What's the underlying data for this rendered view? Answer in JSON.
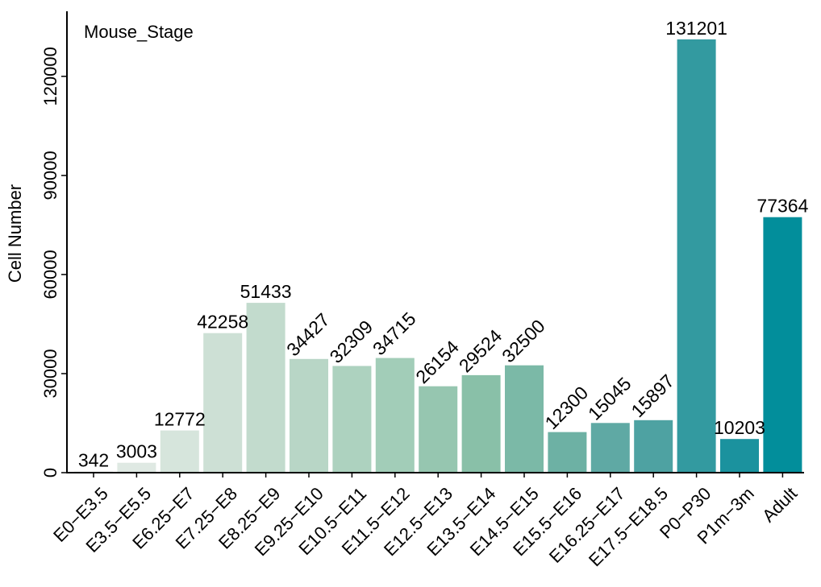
{
  "chart_data": {
    "type": "bar",
    "title": "Mouse_Stage",
    "xlabel": "",
    "ylabel": "Cell Number",
    "ylim": [
      0,
      138000
    ],
    "yticks": [
      0,
      30000,
      60000,
      90000,
      120000
    ],
    "ytick_labels": [
      "0",
      "30000",
      "60000",
      "90000",
      "120000"
    ],
    "categories": [
      "E0−E3.5",
      "E3.5−E5.5",
      "E6.25−E7",
      "E7.25−E8",
      "E8.25−E9",
      "E9.25−E10",
      "E10.5−E11",
      "E11.5−E12",
      "E12.5−E13",
      "E13.5−E14",
      "E14.5−E15",
      "E15.5−E16",
      "E16.25−E17",
      "E17.5−E18.5",
      "P0−P30",
      "P1m−3m",
      "Adult"
    ],
    "values": [
      342,
      3003,
      12772,
      42258,
      51433,
      34427,
      32309,
      34715,
      26154,
      29524,
      32500,
      12300,
      15045,
      15897,
      131201,
      10203,
      77364
    ],
    "value_labels": [
      "342",
      "3003",
      "12772",
      "42258",
      "51433",
      "34427",
      "32309",
      "34715",
      "26154",
      "29524",
      "32500",
      "12300",
      "15045",
      "15897",
      "131201",
      "10203",
      "77364"
    ],
    "label_rotated": [
      false,
      false,
      false,
      false,
      false,
      true,
      true,
      true,
      true,
      true,
      true,
      true,
      true,
      true,
      false,
      false,
      false
    ],
    "colors": [
      "#e6ede8",
      "#dfe9e3",
      "#d6e5dc",
      "#cde0d5",
      "#c2dbcd",
      "#b8d6c6",
      "#add2bf",
      "#a2cdb8",
      "#96c6b0",
      "#89c0a8",
      "#7bb9a7",
      "#6db1a4",
      "#5fa9a4",
      "#4ea2a2",
      "#339aa0",
      "#1b929e",
      "#028e9b"
    ],
    "grid": false,
    "legend": "none"
  }
}
